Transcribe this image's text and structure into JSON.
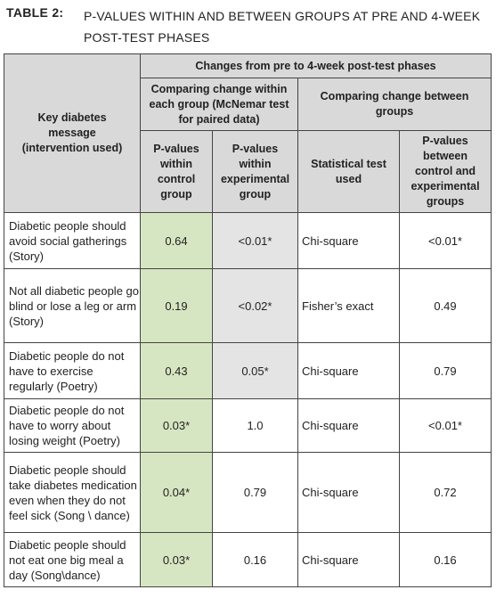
{
  "caption": {
    "label": "TABLE 2:",
    "title": "P-VALUES WITHIN AND BETWEEN GROUPS AT PRE AND 4-WEEK POST-TEST PHASES"
  },
  "header": {
    "key_message": "Key diabetes message (intervention used)",
    "changes": "Changes from pre to 4-week post-test phases",
    "within": "Comparing change within each group (McNemar test for paired data)",
    "between": "Comparing change between groups",
    "col_control": "P-values within control group",
    "col_experimental": "P-values within experimental group",
    "col_test": "Statistical test used",
    "col_between": "P-values between control and experimental groups"
  },
  "rows": [
    {
      "message": "Diabetic people should avoid social gatherings (Story)",
      "control": "0.64",
      "experimental": "<0.01*",
      "test": "Chi-square",
      "between": "<0.01*"
    },
    {
      "message": "Not all diabetic people go blind or lose a leg or arm (Story)",
      "control": "0.19",
      "experimental": "<0.02*",
      "test": "Fisher’s exact",
      "between": "0.49"
    },
    {
      "message": "Diabetic people do not have to exercise regularly (Poetry)",
      "control": "0.43",
      "experimental": "0.05*",
      "test": "Chi-square",
      "between": "0.79"
    },
    {
      "message": "Diabetic people do not have to worry about losing weight (Poetry)",
      "control": "0.03*",
      "experimental": "1.0",
      "test": "Chi-square",
      "between": "<0.01*"
    },
    {
      "message": "Diabetic people should take diabetes medication even when they do not feel sick (Song \\ dance)",
      "control": "0.04*",
      "experimental": "0.79",
      "test": "Chi-square",
      "between": "0.72"
    },
    {
      "message": "Diabetic people should not eat one big meal a day (Song\\dance)",
      "control": "0.03*",
      "experimental": "0.16",
      "test": "Chi-square",
      "between": "0.16"
    }
  ]
}
